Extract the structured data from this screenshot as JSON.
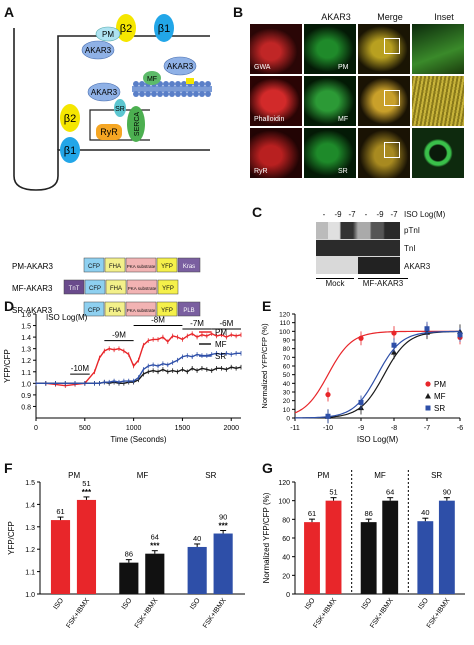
{
  "panel_labels": [
    "A",
    "B",
    "C",
    "D",
    "E",
    "F",
    "G"
  ],
  "A": {
    "proteins": {
      "b2_top": "β2",
      "b1_top": "β1",
      "pm": "PM",
      "akar3_pm": "AKAR3",
      "mf": "MF",
      "akar3_mf": "AKAR3",
      "akar3_sr": "AKAR3",
      "sr": "SR",
      "serca": "SERCA",
      "b2": "β2",
      "ryr": "RyR",
      "b1": "β1"
    },
    "constructs": [
      {
        "name": "PM-AKAR3",
        "domains": [
          "CFP",
          "FHA",
          "PKA substrate",
          "YFP",
          "Kras"
        ]
      },
      {
        "name": "MF-AKAR3",
        "domains": [
          "TnT",
          "CFP",
          "FHA",
          "PKA substrate",
          "YFP"
        ]
      },
      {
        "name": "SR-AKAR3",
        "domains": [
          "CFP",
          "FHA",
          "PKA substrate",
          "YFP",
          "PLB"
        ]
      }
    ]
  },
  "B": {
    "columns": [
      "AKAR3",
      "Merge",
      "Inset"
    ],
    "rows": [
      {
        "left": "GWA",
        "mid": "PM"
      },
      {
        "left": "Phalloidin",
        "mid": "MF"
      },
      {
        "left": "RyR",
        "mid": "SR"
      }
    ]
  },
  "C": {
    "header": "ISO Log(M)",
    "doses": [
      "-",
      "-9",
      "-7",
      "-",
      "-9",
      "-7"
    ],
    "bands": [
      "pTnI",
      "TnI",
      "AKAR3"
    ],
    "groups": [
      "Mock",
      "MF-AKAR3"
    ]
  },
  "D": {
    "ylabel": "YFP/CFP",
    "xlabel": "Time (Seconds)",
    "header": "ISO Log(M)",
    "annotations": [
      "-10M",
      "-9M",
      "-8M",
      "-7M",
      "-6M"
    ],
    "legend": [
      {
        "name": "PM",
        "color": "#e8262a"
      },
      {
        "name": "MF",
        "color": "#1a1a1a"
      },
      {
        "name": "SR",
        "color": "#2e4fa8"
      }
    ]
  },
  "E": {
    "ylabel": "Normalized YFP/CFP (%)",
    "xlabel": "ISO Log(M)",
    "legend": [
      {
        "name": "PM",
        "color": "#e8262a"
      },
      {
        "name": "MF",
        "color": "#1a1a1a"
      },
      {
        "name": "SR",
        "color": "#2e4fa8"
      }
    ]
  },
  "F": {
    "ylabel": "YFP/CFP",
    "groups": [
      "PM",
      "MF",
      "SR"
    ],
    "xticks": [
      "ISO",
      "FSK+IBMX"
    ]
  },
  "G": {
    "ylabel": "Normalized YFP/CFP (%)",
    "groups": [
      "PM",
      "MF",
      "SR"
    ],
    "xticks": [
      "ISO",
      "FSK+IBMX"
    ]
  },
  "chart_data": [
    {
      "panel": "D",
      "type": "line",
      "xlabel": "Time (Seconds)",
      "ylabel": "YFP/CFP",
      "xlim": [
        0,
        2100
      ],
      "ylim": [
        0.7,
        1.6
      ],
      "xticks": [
        0,
        500,
        1000,
        1500,
        2000
      ],
      "yticks": [
        0.8,
        0.9,
        1.0,
        1.1,
        1.2,
        1.3,
        1.4,
        1.5,
        1.6
      ],
      "x": [
        0,
        100,
        200,
        300,
        400,
        500,
        600,
        650,
        700,
        750,
        800,
        850,
        900,
        950,
        1000,
        1050,
        1100,
        1150,
        1200,
        1250,
        1300,
        1350,
        1400,
        1450,
        1500,
        1550,
        1600,
        1650,
        1700,
        1750,
        1800,
        1850,
        1900,
        1950,
        2000,
        2050,
        2100
      ],
      "series": [
        {
          "name": "PM",
          "values": [
            1.0,
            1.0,
            0.99,
            0.98,
            0.99,
            1.0,
            1.1,
            1.22,
            1.28,
            1.3,
            1.29,
            1.3,
            1.28,
            1.25,
            1.15,
            1.2,
            1.33,
            1.37,
            1.38,
            1.38,
            1.4,
            1.36,
            1.41,
            1.4,
            1.38,
            1.41,
            1.43,
            1.4,
            1.42,
            1.41,
            1.43,
            1.41,
            1.42,
            1.4,
            1.42,
            1.41,
            1.42
          ]
        },
        {
          "name": "MF",
          "values": [
            1.0,
            1.0,
            1.0,
            1.0,
            1.0,
            1.0,
            1.0,
            1.0,
            1.01,
            1.0,
            1.01,
            1.0,
            1.0,
            1.01,
            1.01,
            1.03,
            1.08,
            1.1,
            1.11,
            1.1,
            1.12,
            1.1,
            1.11,
            1.1,
            1.12,
            1.1,
            1.13,
            1.11,
            1.13,
            1.12,
            1.11,
            1.13,
            1.13,
            1.12,
            1.14,
            1.13,
            1.14
          ]
        },
        {
          "name": "SR",
          "values": [
            1.0,
            1.0,
            1.0,
            1.0,
            1.0,
            1.0,
            1.0,
            1.0,
            1.01,
            1.01,
            1.02,
            1.01,
            1.02,
            1.02,
            1.02,
            1.05,
            1.12,
            1.15,
            1.16,
            1.15,
            1.17,
            1.16,
            1.18,
            1.2,
            1.23,
            1.24,
            1.23,
            1.25,
            1.24,
            1.24,
            1.25,
            1.26,
            1.25,
            1.26,
            1.25,
            1.26,
            1.26
          ]
        }
      ]
    },
    {
      "panel": "E",
      "type": "scatter",
      "xlabel": "ISO Log(M)",
      "ylabel": "Normalized YFP/CFP (%)",
      "xlim": [
        -11,
        -6
      ],
      "ylim": [
        0,
        120
      ],
      "xticks": [
        -11,
        -10,
        -9,
        -8,
        -7,
        -6
      ],
      "yticks": [
        0,
        10,
        20,
        30,
        40,
        50,
        60,
        70,
        80,
        90,
        100,
        110,
        120
      ],
      "series": [
        {
          "name": "PM",
          "x": [
            -10,
            -9,
            -8,
            -7,
            -6
          ],
          "y": [
            27,
            92,
            98,
            101,
            93
          ]
        },
        {
          "name": "MF",
          "x": [
            -10,
            -9,
            -8,
            -7,
            -6
          ],
          "y": [
            2,
            12,
            76,
            99,
            100
          ]
        },
        {
          "name": "SR",
          "x": [
            -10,
            -9,
            -8,
            -7,
            -6
          ],
          "y": [
            2,
            18,
            84,
            103,
            96
          ]
        }
      ]
    },
    {
      "panel": "F",
      "type": "bar",
      "ylabel": "YFP/CFP",
      "ylim": [
        1.0,
        1.5
      ],
      "yticks": [
        1.0,
        1.1,
        1.2,
        1.3,
        1.4,
        1.5
      ],
      "categories": [
        "PM ISO",
        "PM FSK+IBMX",
        "MF ISO",
        "MF FSK+IBMX",
        "SR ISO",
        "SR FSK+IBMX"
      ],
      "values": [
        1.33,
        1.42,
        1.14,
        1.18,
        1.21,
        1.27
      ],
      "n": [
        "61",
        "51",
        "86",
        "64",
        "40",
        "90"
      ],
      "stars": [
        "",
        "***",
        "",
        "***",
        "",
        "***"
      ]
    },
    {
      "panel": "G",
      "type": "bar",
      "ylabel": "Normalized YFP/CFP (%)",
      "ylim": [
        0,
        120
      ],
      "yticks": [
        0,
        20,
        40,
        60,
        80,
        100,
        120
      ],
      "categories": [
        "PM ISO",
        "PM FSK+IBMX",
        "MF ISO",
        "MF FSK+IBMX",
        "SR ISO",
        "SR FSK+IBMX"
      ],
      "values": [
        77,
        100,
        77,
        100,
        78,
        100
      ],
      "n": [
        "61",
        "51",
        "86",
        "64",
        "40",
        "90"
      ]
    }
  ]
}
